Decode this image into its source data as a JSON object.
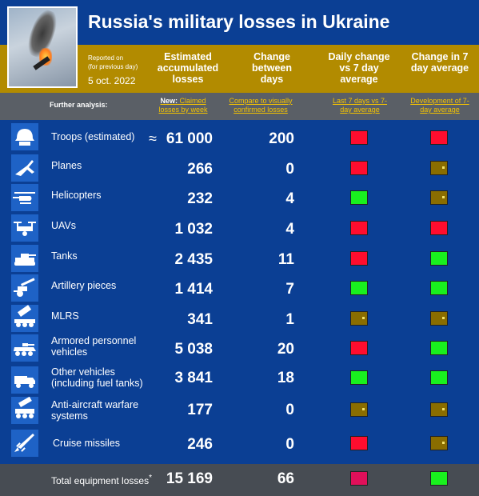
{
  "header": {
    "title": "Russia's military losses in Ukraine",
    "reported_on": "Reported on",
    "reported_note": "(for previous day)",
    "date": "5 oct. 2022"
  },
  "columns": {
    "estimated": "Estimated accumulated losses",
    "change_days": "Change between days",
    "daily_change": "Daily change vs 7 day average",
    "change_7day": "Change in 7 day average"
  },
  "analysis": {
    "label": "Further analysis:",
    "new_prefix": "New:",
    "claimed_link": "Claimed losses by week",
    "compare_link": "Compare to visually confirmed losses",
    "last7_link": "Last 7 days vs 7-day average",
    "development_link": "Development of 7-day average"
  },
  "colors": {
    "red": "#ff0d2e",
    "green": "#19f01e",
    "neutral": "#8a6d00",
    "magenta": "#e0105a"
  },
  "rows": [
    {
      "label": "Troops (estimated)",
      "approx": "≈",
      "value": "61 000",
      "change": "200",
      "daily": "red",
      "avg": "red",
      "icon": "helmet-icon"
    },
    {
      "label": "Planes",
      "value": "266",
      "change": "0",
      "daily": "red",
      "avg": "neutral",
      "icon": "plane-icon"
    },
    {
      "label": "Helicopters",
      "value": "232",
      "change": "4",
      "daily": "green",
      "avg": "neutral",
      "icon": "helicopter-icon"
    },
    {
      "label": "UAVs",
      "value": "1 032",
      "change": "4",
      "daily": "red",
      "avg": "red",
      "icon": "drone-icon"
    },
    {
      "label": "Tanks",
      "value": "2 435",
      "change": "11",
      "daily": "red",
      "avg": "green",
      "icon": "tank-icon"
    },
    {
      "label": "Artillery pieces",
      "value": "1 414",
      "change": "7",
      "daily": "green",
      "avg": "green",
      "icon": "artillery-icon"
    },
    {
      "label": "MLRS",
      "value": "341",
      "change": "1",
      "daily": "neutral",
      "avg": "neutral",
      "icon": "rocket-launcher-icon"
    },
    {
      "label": "Armored personnel vehicles",
      "value": "5 038",
      "change": "20",
      "daily": "red",
      "avg": "green",
      "icon": "apc-icon"
    },
    {
      "label": "Other vehicles (including fuel tanks)",
      "value": "3 841",
      "change": "18",
      "daily": "green",
      "avg": "green",
      "icon": "truck-icon"
    },
    {
      "label": "Anti-aircraft warfare systems",
      "value": "177",
      "change": "0",
      "daily": "neutral",
      "avg": "neutral",
      "icon": "anti-aircraft-icon"
    },
    {
      "label": "Cruise missiles",
      "value": "246",
      "change": "0",
      "daily": "red",
      "avg": "neutral",
      "icon": "missile-icon"
    }
  ],
  "footer": {
    "label": "Total equipment losses",
    "asterisk": "*",
    "value": "15 169",
    "change": "66",
    "daily": "magenta",
    "avg": "green"
  }
}
